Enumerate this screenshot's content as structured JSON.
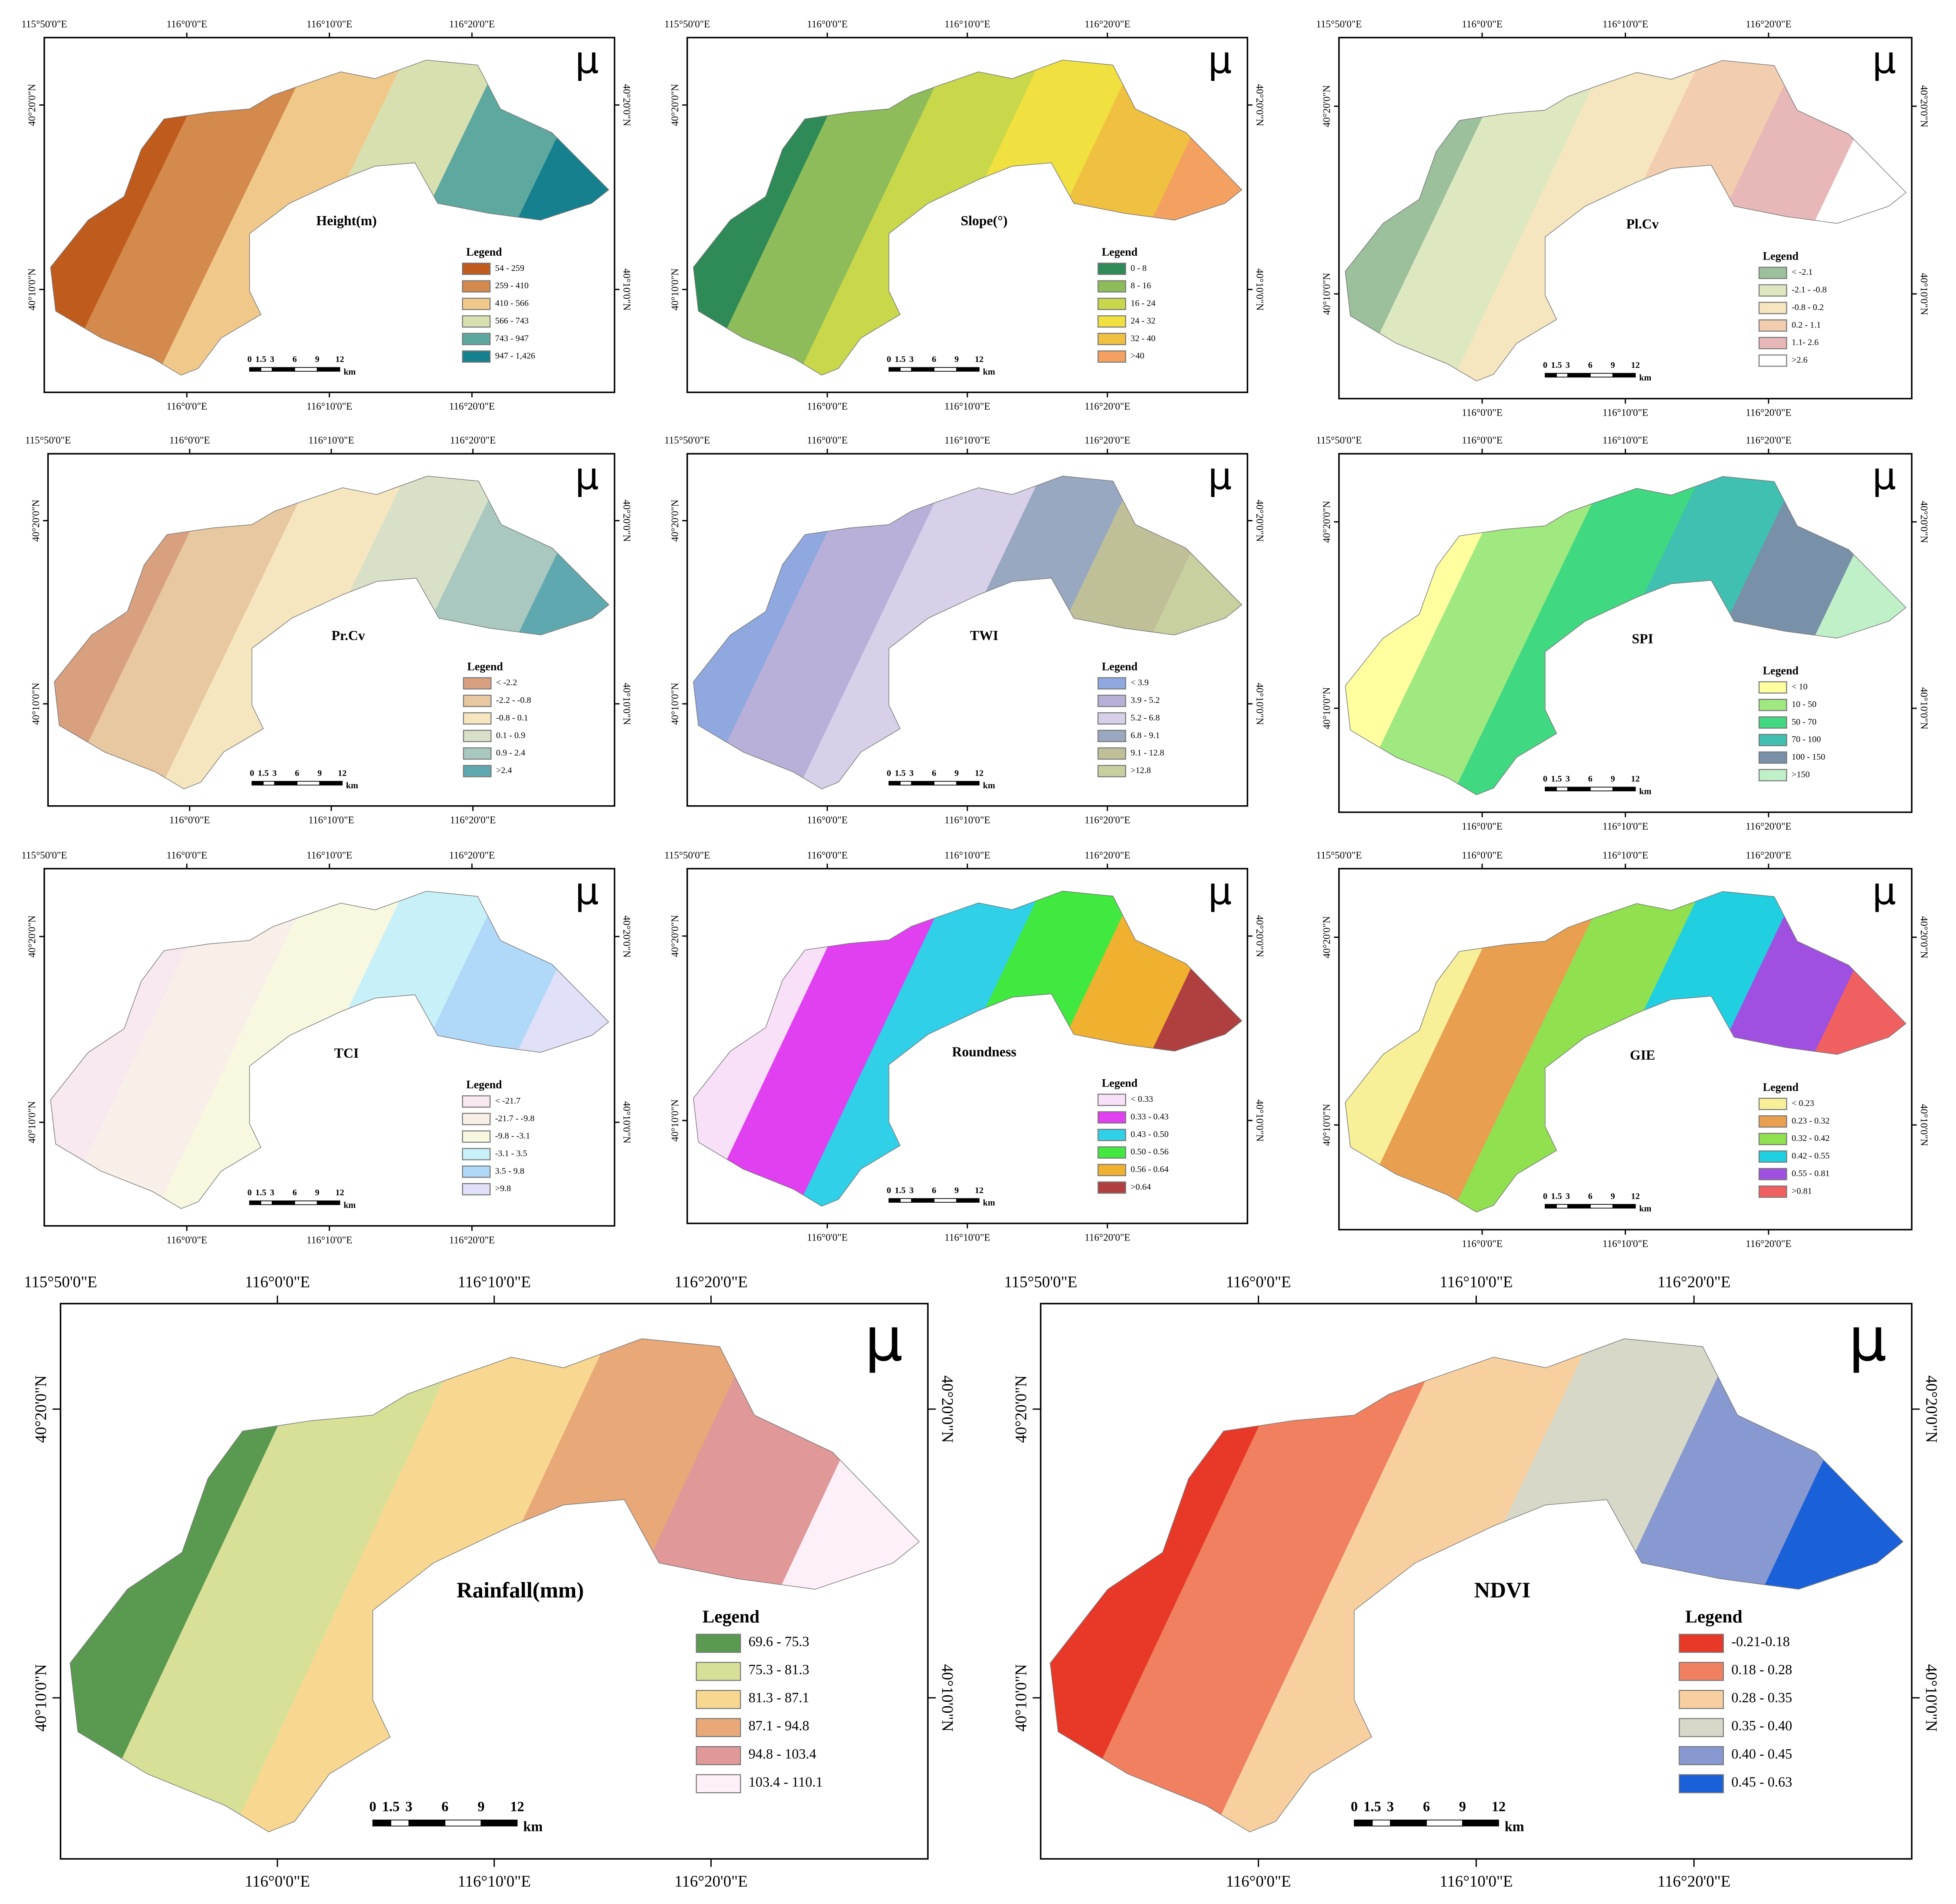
{
  "north_arrow": "μ",
  "legend_title": "Legend",
  "graticule": {
    "top": [
      "115°50'0\"E",
      "116°0'0\"E",
      "116°10'0\"E",
      "116°20'0\"E"
    ],
    "side": [
      "40°20'0\"N",
      "40°10'0\"N"
    ]
  },
  "scale_bar": {
    "labels": [
      "0",
      "1.5",
      "3",
      "6",
      "9",
      "12"
    ],
    "unit": "km"
  },
  "panels": [
    {
      "title": "Height(m)",
      "legend": {
        "labels": [
          "54 - 259",
          "259 - 410",
          "410 - 566",
          "566 - 743",
          "743 - 947",
          "947 - 1,426"
        ],
        "colors": [
          "#bf5b1c",
          "#d4894d",
          "#f0c98a",
          "#d9e0b0",
          "#5fa8a0",
          "#16808e"
        ]
      }
    },
    {
      "title": "Slope(°)",
      "legend": {
        "labels": [
          "0 - 8",
          "8 - 16",
          "16 - 24",
          "24 - 32",
          "32 - 40",
          ">40"
        ],
        "colors": [
          "#2e8b57",
          "#8fbc5a",
          "#c8d84a",
          "#f0e040",
          "#f0c040",
          "#f4a060"
        ]
      }
    },
    {
      "title": "Pl.Cv",
      "legend": {
        "labels": [
          "< -2.1",
          "-2.1 - -0.8",
          "-0.8 - 0.2",
          "0.2 - 1.1",
          "1.1- 2.6",
          ">2.6"
        ],
        "colors": [
          "#9cbf9c",
          "#dde8c0",
          "#f5e6c0",
          "#f2cdb0",
          "#e8b8b8",
          "#ffffff"
        ]
      }
    },
    {
      "title": "Pr.Cv",
      "legend": {
        "labels": [
          "< -2.2",
          "-2.2 - -0.8",
          "-0.8 - 0.1",
          "0.1 - 0.9",
          "0.9 - 2.4",
          ">2.4"
        ],
        "colors": [
          "#d9a080",
          "#e8c8a0",
          "#f5e6c0",
          "#d8e0c8",
          "#a8c8c0",
          "#60a8b0"
        ]
      }
    },
    {
      "title": "TWI",
      "legend": {
        "labels": [
          "< 3.9",
          "3.9 - 5.2",
          "5.2 - 6.8",
          "6.8 - 9.1",
          "9.1 - 12.8",
          ">12.8"
        ],
        "colors": [
          "#8fa8e0",
          "#b8b0d8",
          "#d8d0e8",
          "#98a8c0",
          "#c0c098",
          "#c8d0a0"
        ]
      }
    },
    {
      "title": "SPI",
      "legend": {
        "labels": [
          "< 10",
          "10 - 50",
          "50 - 70",
          "70 - 100",
          "100 - 150",
          ">150"
        ],
        "colors": [
          "#ffffa0",
          "#a0e880",
          "#40d880",
          "#40c0b0",
          "#7890a8",
          "#c0f0c8"
        ]
      }
    },
    {
      "title": "TCI",
      "legend": {
        "labels": [
          "< -21.7",
          "-21.7 - -9.8",
          "-9.8 - -3.1",
          "-3.1 - 3.5",
          "3.5 - 9.8",
          ">9.8"
        ],
        "colors": [
          "#f8e8f0",
          "#f8f0e8",
          "#f8f8e0",
          "#c8f0f8",
          "#b0d8f8",
          "#e0e0f8"
        ]
      }
    },
    {
      "title": "Roundness",
      "legend": {
        "labels": [
          "< 0.33",
          "0.33 - 0.43",
          "0.43 - 0.50",
          "0.50 - 0.56",
          "0.56 - 0.64",
          ">0.64"
        ],
        "colors": [
          "#f8e0f8",
          "#e040f0",
          "#30d0e8",
          "#40e840",
          "#f0b030",
          "#b04040"
        ]
      }
    },
    {
      "title": "GIE",
      "legend": {
        "labels": [
          "< 0.23",
          "0.23 - 0.32",
          "0.32 - 0.42",
          "0.42 - 0.55",
          "0.55 - 0.81",
          ">0.81"
        ],
        "colors": [
          "#f8f098",
          "#e8a050",
          "#90e050",
          "#20d0e0",
          "#a050e0",
          "#f06060"
        ]
      }
    },
    {
      "title": "Rainfall(mm)",
      "legend": {
        "labels": [
          "69.6 - 75.3",
          "75.3 - 81.3",
          "81.3 - 87.1",
          "87.1 - 94.8",
          "94.8 - 103.4",
          "103.4 - 110.1"
        ],
        "colors": [
          "#5a9a50",
          "#d8e098",
          "#f8d890",
          "#e8a878",
          "#e09898",
          "#fdf0f8"
        ]
      }
    },
    {
      "title": "NDVI",
      "legend": {
        "labels": [
          "-0.21-0.18",
          "0.18 - 0.28",
          "0.28 - 0.35",
          "0.35 - 0.40",
          "0.40 - 0.45",
          "0.45 - 0.63"
        ],
        "colors": [
          "#e83828",
          "#f08060",
          "#f8d0a0",
          "#d8d8c8",
          "#8898d0",
          "#1a60d8"
        ]
      }
    }
  ]
}
